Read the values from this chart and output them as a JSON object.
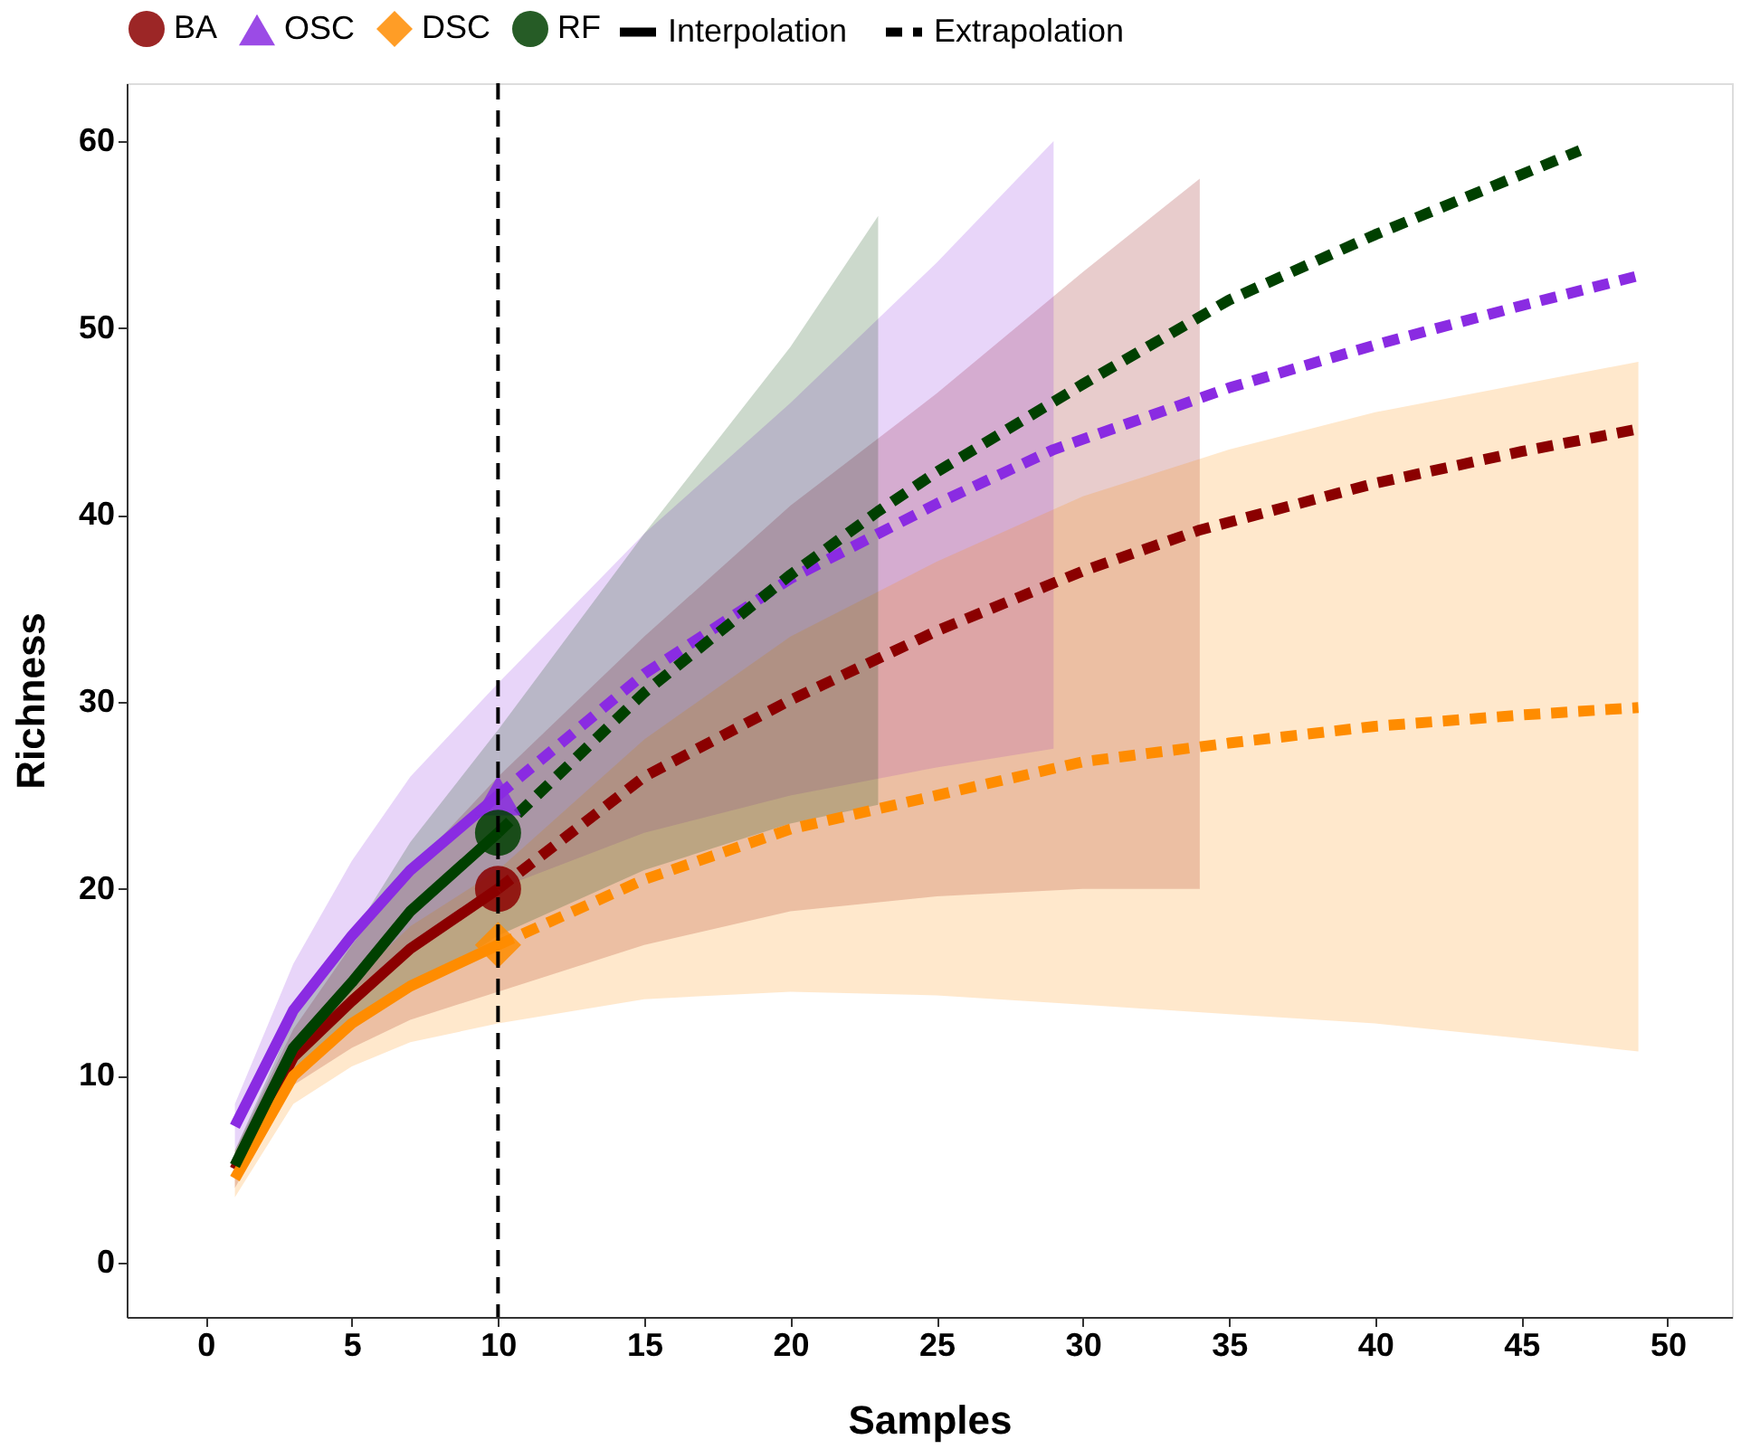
{
  "chart_data": {
    "type": "line",
    "xlabel": "Samples",
    "ylabel": "Richness",
    "xlim": [
      -2.7,
      52.2
    ],
    "ylim": [
      -2.9,
      63.1
    ],
    "xticks": [
      0,
      5,
      10,
      15,
      20,
      25,
      30,
      35,
      40,
      45,
      50
    ],
    "yticks": [
      0,
      10,
      20,
      30,
      40,
      50,
      60
    ],
    "grid": false,
    "legend": "top",
    "annotations": [
      "Interpolation",
      "Extrapolation"
    ],
    "ref_lines": [
      {
        "axis": "x",
        "value": 10,
        "color": "#000000",
        "line_style": "dashed"
      }
    ],
    "series": [
      {
        "color": "#8b0000",
        "line_style": "solid",
        "x": [
          1,
          3,
          5,
          7,
          10
        ],
        "values": [
          5,
          11,
          14,
          16.8,
          20
        ],
        "lower": [
          4,
          9.5,
          11.5,
          13,
          14.5
        ],
        "upper": [
          6,
          12.5,
          17,
          21,
          26
        ]
      },
      {
        "color": "#8a2be2",
        "line_style": "solid",
        "x": [
          1,
          3,
          5,
          7,
          10
        ],
        "values": [
          7.3,
          13.5,
          17.5,
          21,
          25
        ],
        "lower": [
          6,
          11,
          14.5,
          17,
          20
        ],
        "upper": [
          8.5,
          16,
          21.5,
          26,
          31
        ]
      },
      {
        "color": "#ff8c00",
        "line_style": "solid",
        "x": [
          1,
          3,
          5,
          7,
          10
        ],
        "values": [
          4.5,
          10,
          12.8,
          14.8,
          17
        ],
        "lower": [
          3.5,
          8.5,
          10.5,
          11.8,
          12.8
        ],
        "upper": [
          5.5,
          11.5,
          15,
          18,
          21
        ]
      },
      {
        "color": "#004000",
        "line_style": "solid",
        "x": [
          1,
          3,
          5,
          7,
          10
        ],
        "values": [
          5.2,
          11.5,
          15,
          18.8,
          23
        ],
        "lower": [
          4.5,
          10,
          12.5,
          14.5,
          17.5
        ],
        "upper": [
          6,
          13,
          17.5,
          22.5,
          28.5
        ]
      },
      {
        "color": "#8b0000",
        "line_style": "dashed",
        "x": [
          10,
          15,
          20,
          25,
          30,
          34,
          40,
          45,
          49
        ],
        "values": [
          20,
          26,
          30.1,
          33.8,
          37,
          39.2,
          41.7,
          43.4,
          44.6
        ],
        "lower": [
          14.5,
          17,
          18.8,
          19.6,
          20,
          20,
          null,
          null,
          null
        ],
        "upper": [
          26,
          33.5,
          40.5,
          46.5,
          53,
          58,
          null,
          null,
          null
        ]
      },
      {
        "color": "#8a2be2",
        "line_style": "dashed",
        "x": [
          10,
          15,
          20,
          25,
          29,
          35,
          40,
          45,
          49
        ],
        "values": [
          25,
          31.5,
          36.6,
          40.6,
          43.5,
          46.8,
          49.1,
          51.2,
          52.8
        ],
        "lower": [
          20,
          23,
          25,
          26.5,
          27.5,
          null,
          null,
          null,
          null
        ],
        "upper": [
          31,
          39,
          46,
          53.5,
          60,
          null,
          null,
          null,
          null
        ]
      },
      {
        "color": "#ff8c00",
        "line_style": "dashed",
        "x": [
          10,
          15,
          20,
          25,
          30,
          35,
          40,
          45,
          49
        ],
        "values": [
          17,
          20.5,
          23.2,
          25,
          26.8,
          27.8,
          28.7,
          29.3,
          29.7
        ],
        "lower": [
          12.8,
          14.1,
          14.5,
          14.3,
          13.8,
          13.3,
          12.8,
          12,
          11.3
        ],
        "upper": [
          21,
          28,
          33.5,
          37.5,
          41,
          43.5,
          45.5,
          47,
          48.2
        ]
      },
      {
        "color": "#004000",
        "line_style": "dashed",
        "x": [
          10,
          15,
          20,
          23,
          25,
          30,
          35,
          40,
          47
        ],
        "values": [
          23,
          30.5,
          36.8,
          40.2,
          42.3,
          47,
          51.5,
          55,
          59.5
        ],
        "lower": [
          17.5,
          21,
          23.5,
          24.5,
          null,
          null,
          null,
          null,
          null
        ],
        "upper": [
          28.5,
          39,
          49,
          56,
          null,
          null,
          null,
          null,
          null
        ]
      },
      {
        "type": "scatter",
        "name": "BA",
        "color": "#8b0000",
        "marker": "circle",
        "x": [
          10
        ],
        "values": [
          20
        ]
      },
      {
        "type": "scatter",
        "name": "OSC",
        "color": "#8a2be2",
        "marker": "triangle",
        "x": [
          10
        ],
        "values": [
          25
        ]
      },
      {
        "type": "scatter",
        "name": "DSC",
        "color": "#ff8c00",
        "marker": "diamond",
        "x": [
          10
        ],
        "values": [
          17
        ]
      },
      {
        "type": "scatter",
        "name": "RF",
        "color": "#004000",
        "marker": "circle",
        "x": [
          10
        ],
        "values": [
          23
        ]
      }
    ]
  }
}
